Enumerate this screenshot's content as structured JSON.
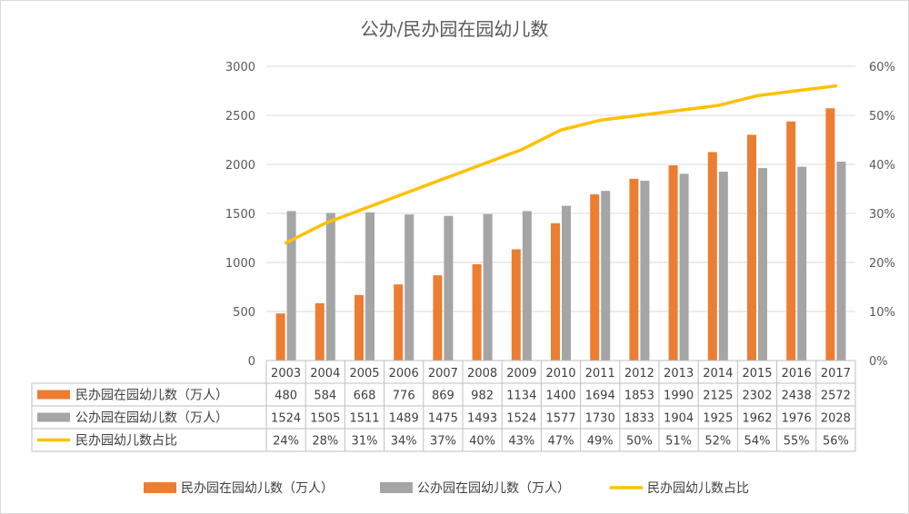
{
  "chart_data": {
    "type": "bar",
    "title": "公办/民办园在园幼儿数",
    "categories": [
      "2003",
      "2004",
      "2005",
      "2006",
      "2007",
      "2008",
      "2009",
      "2010",
      "2011",
      "2012",
      "2013",
      "2014",
      "2015",
      "2016",
      "2017"
    ],
    "y_left": {
      "ylim": [
        0,
        3000
      ],
      "ticks": [
        "0",
        "500",
        "1000",
        "1500",
        "2000",
        "2500",
        "3000"
      ]
    },
    "y_right": {
      "ylim": [
        0,
        60
      ],
      "ticks": [
        "0%",
        "10%",
        "20%",
        "30%",
        "40%",
        "50%",
        "60%"
      ]
    },
    "grid": true,
    "legend_position": "bottom",
    "series": [
      {
        "name": "民办园在园幼儿数（万人）",
        "kind": "bar",
        "axis": "left",
        "color": "#ed7d31",
        "values": [
          480,
          584,
          668,
          776,
          869,
          982,
          1134,
          1400,
          1694,
          1853,
          1990,
          2125,
          2302,
          2438,
          2572
        ],
        "labels": [
          "480",
          "584",
          "668",
          "776",
          "869",
          "982",
          "1134",
          "1400",
          "1694",
          "1853",
          "1990",
          "2125",
          "2302",
          "2438",
          "2572"
        ]
      },
      {
        "name": "公办园在园幼儿数（万人）",
        "kind": "bar",
        "axis": "left",
        "color": "#a5a5a5",
        "values": [
          1524,
          1505,
          1511,
          1489,
          1475,
          1493,
          1524,
          1577,
          1730,
          1833,
          1904,
          1925,
          1962,
          1976,
          2028
        ],
        "labels": [
          "1524",
          "1505",
          "1511",
          "1489",
          "1475",
          "1493",
          "1524",
          "1577",
          "1730",
          "1833",
          "1904",
          "1925",
          "1962",
          "1976",
          "2028"
        ]
      },
      {
        "name": "民办园幼儿数占比",
        "kind": "line",
        "axis": "right",
        "color": "#ffc000",
        "values": [
          24,
          28,
          31,
          34,
          37,
          40,
          43,
          47,
          49,
          50,
          51,
          52,
          54,
          55,
          56
        ],
        "labels": [
          "24%",
          "28%",
          "31%",
          "34%",
          "37%",
          "40%",
          "43%",
          "47%",
          "49%",
          "50%",
          "51%",
          "52%",
          "54%",
          "55%",
          "56%"
        ]
      }
    ]
  }
}
